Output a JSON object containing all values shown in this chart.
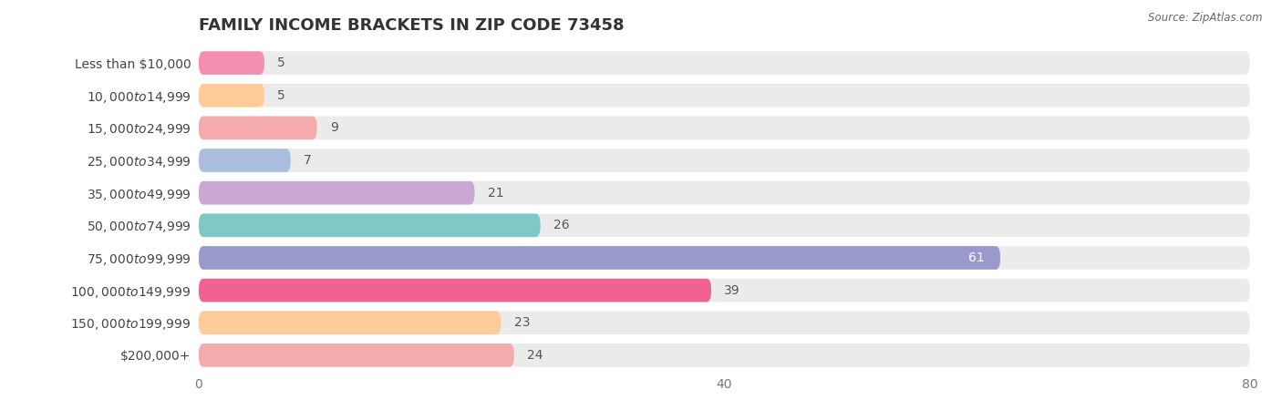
{
  "title": "FAMILY INCOME BRACKETS IN ZIP CODE 73458",
  "source": "Source: ZipAtlas.com",
  "categories": [
    "Less than $10,000",
    "$10,000 to $14,999",
    "$15,000 to $24,999",
    "$25,000 to $34,999",
    "$35,000 to $49,999",
    "$50,000 to $74,999",
    "$75,000 to $99,999",
    "$100,000 to $149,999",
    "$150,000 to $199,999",
    "$200,000+"
  ],
  "values": [
    5,
    5,
    9,
    7,
    21,
    26,
    61,
    39,
    23,
    24
  ],
  "bar_colors": [
    "#F48FB1",
    "#FFCC99",
    "#F4ABAB",
    "#AABFDD",
    "#C9A8D4",
    "#7EC8C8",
    "#9999CC",
    "#F06292",
    "#FFCC99",
    "#F4ABAB"
  ],
  "xlim": [
    0,
    80
  ],
  "xticks": [
    0,
    40,
    80
  ],
  "fig_bg": "#ffffff",
  "row_bg": "#ebebeb",
  "title_fontsize": 13,
  "label_fontsize": 10,
  "value_fontsize": 10
}
